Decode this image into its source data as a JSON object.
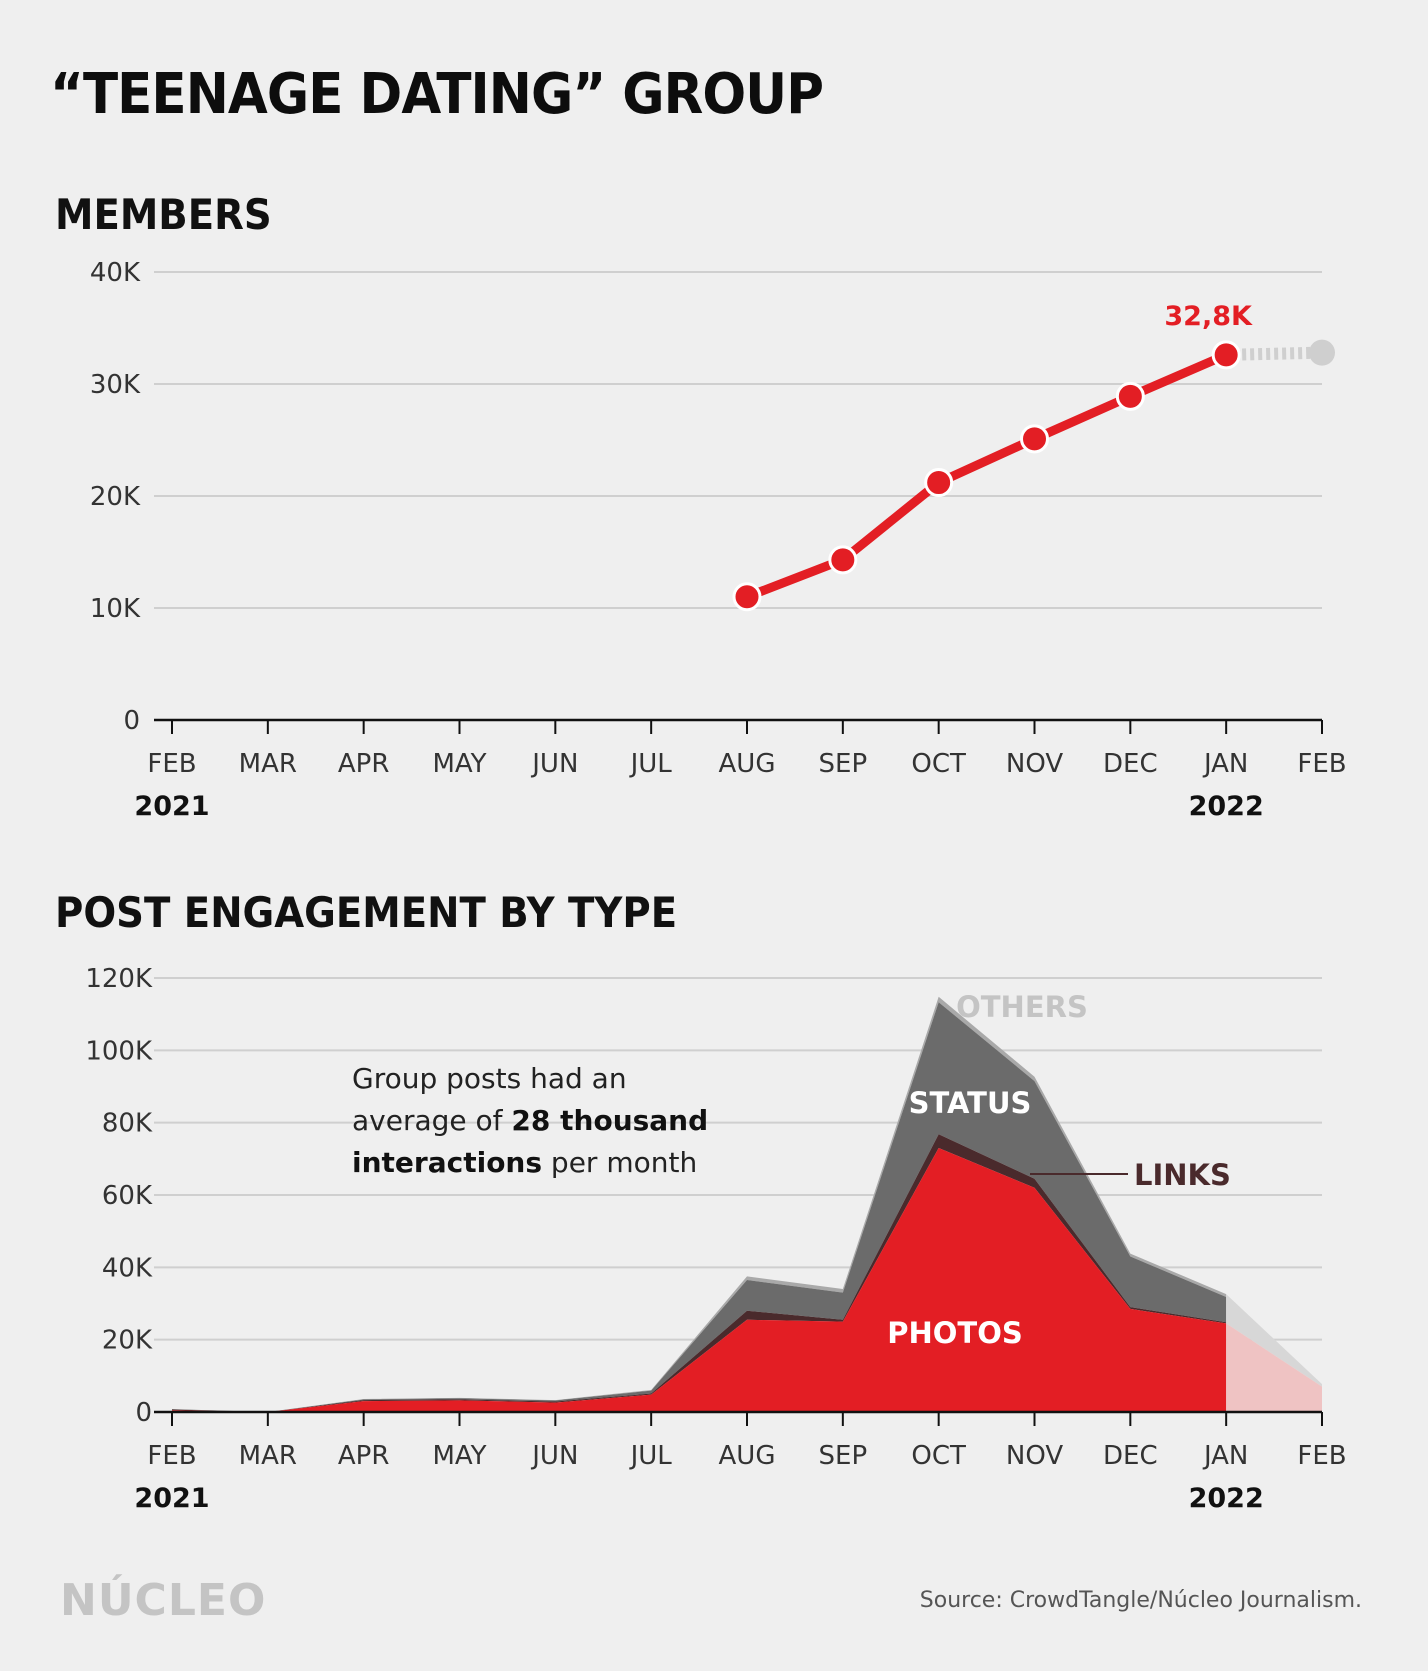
{
  "title": "“TEENAGE DATING” GROUP",
  "members_title": "MEMBERS",
  "engagement_title": "POST ENGAGEMENT BY TYPE",
  "annotation": {
    "line1": "Group posts had an",
    "line2_pre": "average of ",
    "line2_bold": "28 thousand",
    "line3_bold": "interactions",
    "line3_post": " per month"
  },
  "logo": "NÚCLEO",
  "source": "Source: CrowdTangle/Núcleo Journalism.",
  "colors": {
    "red": "#e31e24",
    "links": "#4a2a2c",
    "status": "#6b6b6b",
    "others": "#a9a9a9",
    "projection": "#cfcfcf",
    "projection_fill": "#efc3c3"
  },
  "chart_data": [
    {
      "type": "line",
      "title": "MEMBERS",
      "x": [
        "FEB",
        "MAR",
        "APR",
        "MAY",
        "JUN",
        "JUL",
        "AUG",
        "SEP",
        "OCT",
        "NOV",
        "DEC",
        "JAN",
        "FEB"
      ],
      "year_labels": [
        {
          "index": 0,
          "label": "2021"
        },
        {
          "index": 11,
          "label": "2022"
        }
      ],
      "y_ticks": [
        "0",
        "10K",
        "20K",
        "30K",
        "40K"
      ],
      "ylim": [
        0,
        40000
      ],
      "grid": true,
      "series": [
        {
          "values": [
            null,
            null,
            null,
            null,
            null,
            null,
            11000,
            14300,
            21200,
            25100,
            28900,
            32600,
            null
          ]
        }
      ],
      "projection": {
        "from_index": 11,
        "to_index": 12,
        "values": [
          32600,
          32800
        ],
        "style": "dotted"
      },
      "value_label": {
        "index": 11,
        "label": "32,8K"
      }
    },
    {
      "type": "area",
      "title": "POST ENGAGEMENT BY TYPE",
      "x": [
        "FEB",
        "MAR",
        "APR",
        "MAY",
        "JUN",
        "JUL",
        "AUG",
        "SEP",
        "OCT",
        "NOV",
        "DEC",
        "JAN",
        "FEB"
      ],
      "year_labels": [
        {
          "index": 0,
          "label": "2021"
        },
        {
          "index": 11,
          "label": "2022"
        }
      ],
      "y_ticks": [
        "0",
        "20K",
        "40K",
        "60K",
        "80K",
        "100K",
        "120K"
      ],
      "ylim": [
        0,
        120000
      ],
      "grid": true,
      "stacked": true,
      "series": [
        {
          "name": "PHOTOS",
          "values": [
            500,
            0,
            3000,
            3200,
            2600,
            4800,
            25500,
            25000,
            73000,
            62000,
            28500,
            24500,
            7000
          ]
        },
        {
          "name": "LINKS",
          "values": [
            200,
            0,
            300,
            300,
            300,
            300,
            2500,
            500,
            3800,
            2500,
            500,
            300,
            0
          ]
        },
        {
          "name": "STATUS",
          "values": [
            100,
            0,
            200,
            300,
            300,
            800,
            8500,
            7500,
            36500,
            27000,
            14000,
            7000,
            500
          ]
        },
        {
          "name": "OTHERS",
          "values": [
            0,
            0,
            100,
            100,
            100,
            200,
            1000,
            1000,
            1500,
            1200,
            800,
            800,
            200
          ]
        }
      ],
      "projection_from_index": 11
    }
  ]
}
